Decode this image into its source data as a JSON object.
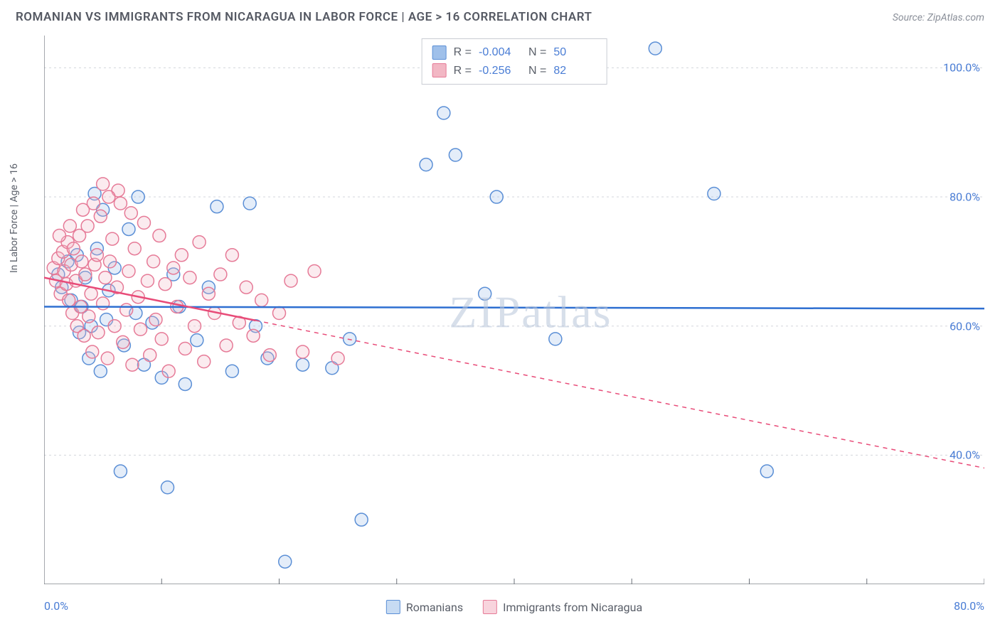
{
  "title": "ROMANIAN VS IMMIGRANTS FROM NICARAGUA IN LABOR FORCE | AGE > 16 CORRELATION CHART",
  "source": "Source: ZipAtlas.com",
  "ylabel": "In Labor Force | Age > 16",
  "watermark": "ZIPatlas",
  "chart": {
    "type": "scatter",
    "background_color": "#ffffff",
    "grid_color": "#d3d6dc",
    "axis_color": "#6b7078",
    "xlim": [
      0,
      80
    ],
    "ylim": [
      20,
      105
    ],
    "x_ticks": [
      0,
      10,
      20,
      30,
      40,
      50,
      60,
      70,
      80
    ],
    "y_grid": [
      40,
      60,
      80,
      100
    ],
    "y_tick_labels": [
      "40.0%",
      "60.0%",
      "80.0%",
      "100.0%"
    ],
    "x_end_labels": [
      "0.0%",
      "80.0%"
    ],
    "marker_radius": 9,
    "marker_stroke_width": 1.5,
    "fill_opacity": 0.28,
    "series": [
      {
        "name": "Romanians",
        "color_fill": "#9fc0ea",
        "color_stroke": "#5b8fd6",
        "r": -0.004,
        "n": 50,
        "trend": {
          "y_at_xmin": 63.0,
          "y_at_xmax": 62.7,
          "solid_until_x": 80,
          "color": "#2e6fd1",
          "width": 2.5
        },
        "points": [
          [
            1.2,
            68
          ],
          [
            1.5,
            66
          ],
          [
            2.0,
            70
          ],
          [
            2.3,
            64
          ],
          [
            2.8,
            71
          ],
          [
            3.0,
            59
          ],
          [
            3.2,
            63
          ],
          [
            3.5,
            67.5
          ],
          [
            3.8,
            55
          ],
          [
            4.0,
            60
          ],
          [
            4.3,
            80.5
          ],
          [
            4.5,
            72
          ],
          [
            4.8,
            53
          ],
          [
            5.0,
            78
          ],
          [
            5.3,
            61
          ],
          [
            5.5,
            65.5
          ],
          [
            6.0,
            69
          ],
          [
            6.5,
            37.5
          ],
          [
            6.8,
            57
          ],
          [
            7.2,
            75
          ],
          [
            7.8,
            62
          ],
          [
            8.0,
            80
          ],
          [
            8.5,
            54
          ],
          [
            9.2,
            60.5
          ],
          [
            10.0,
            52
          ],
          [
            10.5,
            35
          ],
          [
            11.0,
            68
          ],
          [
            11.5,
            63
          ],
          [
            12.0,
            51
          ],
          [
            13.0,
            57.8
          ],
          [
            14.0,
            66
          ],
          [
            14.7,
            78.5
          ],
          [
            16.0,
            53
          ],
          [
            17.5,
            79
          ],
          [
            18.0,
            60
          ],
          [
            19.0,
            55
          ],
          [
            20.5,
            23.5
          ],
          [
            22.0,
            54
          ],
          [
            24.5,
            53.5
          ],
          [
            26.0,
            58
          ],
          [
            27.0,
            30
          ],
          [
            32.5,
            85
          ],
          [
            34.0,
            93
          ],
          [
            35.0,
            86.5
          ],
          [
            37.5,
            65
          ],
          [
            38.5,
            80
          ],
          [
            43.5,
            58
          ],
          [
            52.0,
            103
          ],
          [
            57.0,
            80.5
          ],
          [
            61.5,
            37.5
          ]
        ]
      },
      {
        "name": "Immigrants from Nicaragua",
        "color_fill": "#f2b7c4",
        "color_stroke": "#e67a97",
        "r": -0.256,
        "n": 82,
        "trend": {
          "y_at_xmin": 67.5,
          "y_at_xmax": 38.0,
          "solid_until_x": 18,
          "color": "#e84b78",
          "width": 2.5
        },
        "points": [
          [
            0.8,
            69
          ],
          [
            1.0,
            67
          ],
          [
            1.2,
            70.5
          ],
          [
            1.4,
            65
          ],
          [
            1.6,
            71.5
          ],
          [
            1.7,
            68.5
          ],
          [
            1.9,
            66.5
          ],
          [
            2.0,
            73
          ],
          [
            2.1,
            64
          ],
          [
            2.3,
            69.5
          ],
          [
            2.4,
            62
          ],
          [
            2.5,
            72
          ],
          [
            2.7,
            67
          ],
          [
            2.8,
            60
          ],
          [
            3.0,
            74
          ],
          [
            3.1,
            63
          ],
          [
            3.2,
            70
          ],
          [
            3.4,
            58.5
          ],
          [
            3.5,
            68
          ],
          [
            3.7,
            75.5
          ],
          [
            3.8,
            61.5
          ],
          [
            4.0,
            65
          ],
          [
            4.1,
            56
          ],
          [
            4.3,
            69.5
          ],
          [
            4.5,
            71
          ],
          [
            4.6,
            59
          ],
          [
            4.8,
            77
          ],
          [
            5.0,
            82
          ],
          [
            5.0,
            63.5
          ],
          [
            5.2,
            67.5
          ],
          [
            5.4,
            55
          ],
          [
            5.6,
            70
          ],
          [
            5.8,
            73.5
          ],
          [
            6.0,
            60
          ],
          [
            6.2,
            66
          ],
          [
            6.5,
            79
          ],
          [
            6.7,
            57.5
          ],
          [
            7.0,
            62.5
          ],
          [
            7.2,
            68.5
          ],
          [
            7.5,
            54
          ],
          [
            7.7,
            72
          ],
          [
            8.0,
            64.5
          ],
          [
            8.2,
            59.5
          ],
          [
            8.5,
            76
          ],
          [
            8.8,
            67
          ],
          [
            9.0,
            55.5
          ],
          [
            9.3,
            70
          ],
          [
            9.5,
            61
          ],
          [
            9.8,
            74
          ],
          [
            10.0,
            58
          ],
          [
            10.3,
            66.5
          ],
          [
            10.6,
            53
          ],
          [
            11.0,
            69
          ],
          [
            11.3,
            63
          ],
          [
            11.7,
            71
          ],
          [
            12.0,
            56.5
          ],
          [
            12.4,
            67.5
          ],
          [
            12.8,
            60
          ],
          [
            13.2,
            73
          ],
          [
            13.6,
            54.5
          ],
          [
            14.0,
            65
          ],
          [
            14.5,
            62
          ],
          [
            15.0,
            68
          ],
          [
            15.5,
            57
          ],
          [
            16.0,
            71
          ],
          [
            16.6,
            60.5
          ],
          [
            17.2,
            66
          ],
          [
            17.8,
            58.5
          ],
          [
            18.5,
            64
          ],
          [
            19.2,
            55.5
          ],
          [
            20.0,
            62
          ],
          [
            21.0,
            67
          ],
          [
            22.0,
            56
          ],
          [
            23.0,
            68.5
          ],
          [
            25.0,
            55
          ],
          [
            6.3,
            81
          ],
          [
            4.2,
            79
          ],
          [
            3.3,
            78
          ],
          [
            5.5,
            80
          ],
          [
            7.4,
            77.5
          ],
          [
            2.2,
            75.5
          ],
          [
            1.3,
            74
          ]
        ]
      }
    ]
  },
  "bottom_legend": [
    {
      "label": "Romanians",
      "fill": "#c7dbf3",
      "stroke": "#5b8fd6"
    },
    {
      "label": "Immigrants from Nicaragua",
      "fill": "#f8d4dd",
      "stroke": "#e67a97"
    }
  ],
  "label_color": "#4a7dd5",
  "text_color": "#5a5f69"
}
